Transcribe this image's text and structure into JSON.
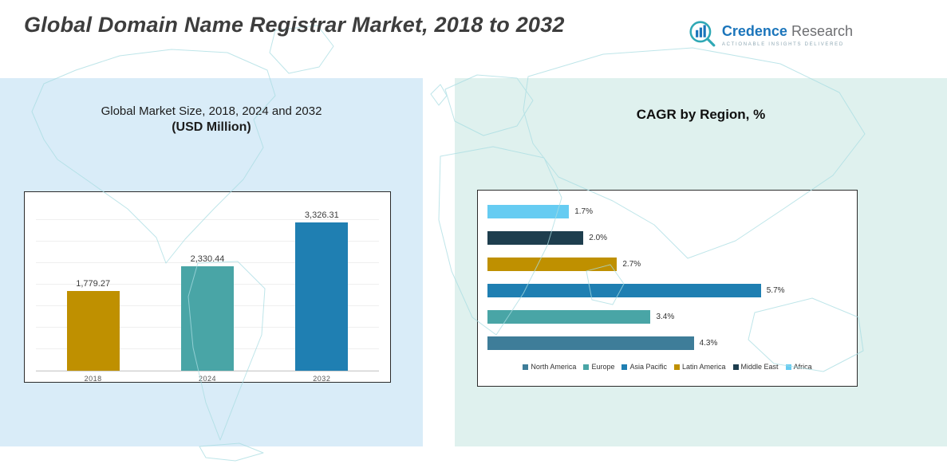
{
  "header": {
    "title": "Global Domain Name Registrar Market, 2018 to 2032",
    "logo": {
      "brand_primary": "Credence",
      "brand_secondary": "Research",
      "tagline": "Actionable Insights Delivered"
    }
  },
  "left_panel": {
    "title_line1": "Global Market Size, 2018, 2024 and 2032",
    "title_line2": "(USD Million)"
  },
  "right_panel": {
    "title": "CAGR by Region, %"
  },
  "chart_data": [
    {
      "type": "bar",
      "title": "Global Market Size, 2018, 2024 and 2032 (USD Million)",
      "categories": [
        "2018",
        "2024",
        "2032"
      ],
      "values": [
        1779.27,
        2330.44,
        3326.31
      ],
      "labels": [
        "1,779.27",
        "2,330.44",
        "3,326.31"
      ],
      "colors": [
        "#bf9000",
        "#49a5a6",
        "#1f7fb2"
      ],
      "xlabel": "",
      "ylabel": "USD Million",
      "ylim": [
        0,
        3500
      ],
      "grid": true,
      "legend_position": "none"
    },
    {
      "type": "bar",
      "orientation": "horizontal",
      "title": "CAGR by Region, %",
      "categories": [
        "Africa",
        "Middle East",
        "Latin America",
        "Asia Pacific",
        "Europe",
        "North America"
      ],
      "values": [
        1.7,
        2.0,
        2.7,
        5.7,
        3.4,
        4.3
      ],
      "labels": [
        "1.7%",
        "2.0%",
        "2.7%",
        "5.7%",
        "3.4%",
        "4.3%"
      ],
      "colors": [
        "#66ccf2",
        "#1e3e4e",
        "#bf9000",
        "#1f7fb2",
        "#49a5a6",
        "#3e7d99"
      ],
      "xlabel": "CAGR %",
      "ylabel": "",
      "xlim": [
        0,
        7.5
      ],
      "grid": false,
      "legend": [
        "North America",
        "Europe",
        "Asia Pacific",
        "Latin America",
        "Middle East",
        "Africa"
      ],
      "legend_colors": [
        "#3e7d99",
        "#49a5a6",
        "#1f7fb2",
        "#bf9000",
        "#1e3e4e",
        "#66ccf2"
      ],
      "legend_position": "bottom"
    }
  ]
}
